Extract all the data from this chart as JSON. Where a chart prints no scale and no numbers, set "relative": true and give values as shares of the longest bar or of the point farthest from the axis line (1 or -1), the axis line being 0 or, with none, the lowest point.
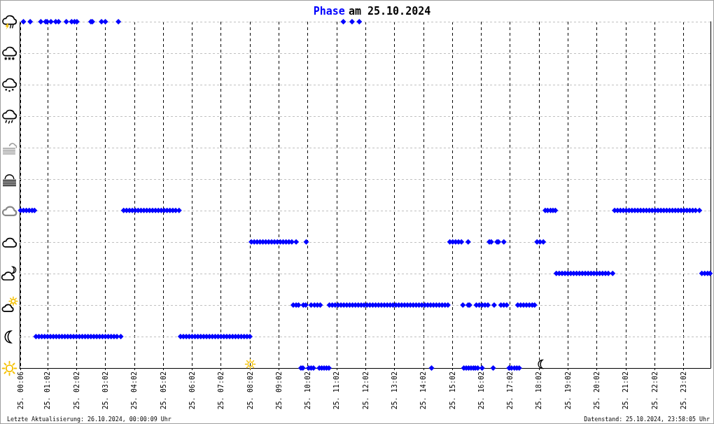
{
  "chart_data": {
    "type": "scatter",
    "title": "am 25.10.2024",
    "annotations": [
      "Letzte Aktualisierung: 26.10.2024, 00:00:09 Uhr",
      "Datenstand: 25.10.2024, 23:58:05 Uhr"
    ],
    "relative": true,
    "xlim": [
      "2024-10-25T00:04",
      "2024-10-25T23:58"
    ],
    "xticks": [
      {
        "value": "2024-10-25T00:06",
        "label": "25. 00:06"
      },
      {
        "value": "2024-10-25T01:02",
        "label": "25. 01:02"
      },
      {
        "value": "2024-10-25T02:02",
        "label": "25. 02:02"
      },
      {
        "value": "2024-10-25T03:02",
        "label": "25. 03:02"
      },
      {
        "value": "2024-10-25T04:02",
        "label": "25. 04:02"
      },
      {
        "value": "2024-10-25T05:02",
        "label": "25. 05:02"
      },
      {
        "value": "2024-10-25T06:02",
        "label": "25. 06:02"
      },
      {
        "value": "2024-10-25T07:02",
        "label": "25. 07:02"
      },
      {
        "value": "2024-10-25T08:02",
        "label": "25. 08:02"
      },
      {
        "value": "2024-10-25T09:02",
        "label": "25. 09:02"
      },
      {
        "value": "2024-10-25T10:02",
        "label": "25. 10:02"
      },
      {
        "value": "2024-10-25T11:02",
        "label": "25. 11:02"
      },
      {
        "value": "2024-10-25T12:02",
        "label": "25. 12:02"
      },
      {
        "value": "2024-10-25T13:02",
        "label": "25. 13:02"
      },
      {
        "value": "2024-10-25T14:02",
        "label": "25. 14:02"
      },
      {
        "value": "2024-10-25T15:02",
        "label": "25. 15:02"
      },
      {
        "value": "2024-10-25T16:02",
        "label": "25. 16:02"
      },
      {
        "value": "2024-10-25T17:02",
        "label": "25. 17:02"
      },
      {
        "value": "2024-10-25T18:02",
        "label": "25. 18:02"
      },
      {
        "value": "2024-10-25T19:02",
        "label": "25. 19:02"
      },
      {
        "value": "2024-10-25T20:02",
        "label": "25. 20:02"
      },
      {
        "value": "2024-10-25T21:02",
        "label": "25. 21:02"
      },
      {
        "value": "2024-10-25T22:02",
        "label": "25. 22:02"
      },
      {
        "value": "2024-10-25T23:02",
        "label": "25. 23:02"
      }
    ],
    "grid": "x",
    "marker": "diamond",
    "ref_lines": [
      {
        "axis": "y",
        "value": 0.091,
        "color": "#c0c0c0",
        "line_style": "dashed"
      },
      {
        "axis": "y",
        "value": 0.182,
        "color": "#c0c0c0",
        "line_style": "dashed"
      },
      {
        "axis": "y",
        "value": 0.273,
        "color": "#c0c0c0",
        "line_style": "dashed"
      },
      {
        "axis": "y",
        "value": 0.364,
        "color": "#c0c0c0",
        "line_style": "dashed"
      },
      {
        "axis": "y",
        "value": 0.455,
        "color": "#c0c0c0",
        "line_style": "dashed"
      },
      {
        "axis": "y",
        "value": 0.545,
        "color": "#c0c0c0",
        "line_style": "dashed"
      },
      {
        "axis": "y",
        "value": 0.636,
        "color": "#c0c0c0",
        "line_style": "dashed"
      },
      {
        "axis": "y",
        "value": 0.727,
        "color": "#c0c0c0",
        "line_style": "dashed"
      },
      {
        "axis": "y",
        "value": 0.818,
        "color": "#c0c0c0",
        "line_style": "dashed"
      },
      {
        "axis": "y",
        "value": 0.909,
        "color": "#c0c0c0",
        "line_style": "dashed"
      },
      {
        "axis": "y",
        "value": 1,
        "color": "#c0c0c0",
        "line_style": "dashed"
      }
    ],
    "series": [
      {
        "name": "Phase",
        "color": "#0000ff",
        "x": [
          "2024-10-25T00:12",
          "2024-10-25T00:26",
          "2024-10-25T00:48",
          "2024-10-25T00:58",
          "2024-10-25T01:01",
          "2024-10-25T01:09",
          "2024-10-25T01:19",
          "2024-10-25T01:25",
          "2024-10-25T01:41",
          "2024-10-25T01:52",
          "2024-10-25T01:58",
          "2024-10-25T02:03",
          "2024-10-25T02:32",
          "2024-10-25T02:35",
          "2024-10-25T02:54",
          "2024-10-25T03:02",
          "2024-10-25T03:29",
          "2024-10-25T11:16",
          "2024-10-25T11:34",
          "2024-10-25T11:49",
          "2024-10-25T00:06",
          "2024-10-25T00:12",
          "2024-10-25T00:18",
          "2024-10-25T00:24",
          "2024-10-25T00:30",
          "2024-10-25T00:35",
          "2024-10-25T03:40",
          "2024-10-25T03:46",
          "2024-10-25T03:52",
          "2024-10-25T03:58",
          "2024-10-25T04:04",
          "2024-10-25T04:10",
          "2024-10-25T04:16",
          "2024-10-25T04:22",
          "2024-10-25T04:28",
          "2024-10-25T04:34",
          "2024-10-25T04:40",
          "2024-10-25T04:46",
          "2024-10-25T04:52",
          "2024-10-25T04:58",
          "2024-10-25T05:04",
          "2024-10-25T05:10",
          "2024-10-25T05:16",
          "2024-10-25T05:22",
          "2024-10-25T05:28",
          "2024-10-25T05:35",
          "2024-10-25T18:15",
          "2024-10-25T18:20",
          "2024-10-25T18:26",
          "2024-10-25T18:31",
          "2024-10-25T18:36",
          "2024-10-25T20:39",
          "2024-10-25T20:45",
          "2024-10-25T20:51",
          "2024-10-25T20:57",
          "2024-10-25T21:03",
          "2024-10-25T21:09",
          "2024-10-25T21:15",
          "2024-10-25T21:21",
          "2024-10-25T21:27",
          "2024-10-25T21:33",
          "2024-10-25T21:39",
          "2024-10-25T21:45",
          "2024-10-25T21:51",
          "2024-10-25T21:57",
          "2024-10-25T22:03",
          "2024-10-25T22:09",
          "2024-10-25T22:15",
          "2024-10-25T22:21",
          "2024-10-25T22:27",
          "2024-10-25T22:33",
          "2024-10-25T22:39",
          "2024-10-25T22:45",
          "2024-10-25T22:51",
          "2024-10-25T22:57",
          "2024-10-25T23:03",
          "2024-10-25T23:09",
          "2024-10-25T23:15",
          "2024-10-25T23:21",
          "2024-10-25T23:27",
          "2024-10-25T23:35",
          "2024-10-25T08:05",
          "2024-10-25T08:11",
          "2024-10-25T08:17",
          "2024-10-25T08:23",
          "2024-10-25T08:29",
          "2024-10-25T08:35",
          "2024-10-25T08:41",
          "2024-10-25T08:47",
          "2024-10-25T08:53",
          "2024-10-25T08:59",
          "2024-10-25T09:05",
          "2024-10-25T09:11",
          "2024-10-25T09:17",
          "2024-10-25T09:23",
          "2024-10-25T09:29",
          "2024-10-25T09:38",
          "2024-10-25T09:59",
          "2024-10-25T14:57",
          "2024-10-25T15:03",
          "2024-10-25T15:09",
          "2024-10-25T15:15",
          "2024-10-25T15:21",
          "2024-10-25T15:35",
          "2024-10-25T16:19",
          "2024-10-25T16:23",
          "2024-10-25T16:35",
          "2024-10-25T16:38",
          "2024-10-25T16:49",
          "2024-10-25T17:58",
          "2024-10-25T18:04",
          "2024-10-25T18:11",
          "2024-10-25T18:38",
          "2024-10-25T18:44",
          "2024-10-25T18:50",
          "2024-10-25T18:56",
          "2024-10-25T19:02",
          "2024-10-25T19:08",
          "2024-10-25T19:14",
          "2024-10-25T19:20",
          "2024-10-25T19:26",
          "2024-10-25T19:32",
          "2024-10-25T19:38",
          "2024-10-25T19:44",
          "2024-10-25T19:50",
          "2024-10-25T19:56",
          "2024-10-25T20:02",
          "2024-10-25T20:08",
          "2024-10-25T20:14",
          "2024-10-25T20:20",
          "2024-10-25T20:26",
          "2024-10-25T20:35",
          "2024-10-25T23:40",
          "2024-10-25T23:46",
          "2024-10-25T23:52",
          "2024-10-25T23:57",
          "2024-10-25T09:32",
          "2024-10-25T09:38",
          "2024-10-25T09:43",
          "2024-10-25T09:53",
          "2024-10-25T09:58",
          "2024-10-25T10:09",
          "2024-10-25T10:16",
          "2024-10-25T10:22",
          "2024-10-25T10:28",
          "2024-10-25T10:47",
          "2024-10-25T10:53",
          "2024-10-25T10:59",
          "2024-10-25T11:05",
          "2024-10-25T11:11",
          "2024-10-25T11:17",
          "2024-10-25T11:23",
          "2024-10-25T11:29",
          "2024-10-25T11:35",
          "2024-10-25T11:41",
          "2024-10-25T11:47",
          "2024-10-25T11:53",
          "2024-10-25T11:59",
          "2024-10-25T12:05",
          "2024-10-25T12:11",
          "2024-10-25T12:17",
          "2024-10-25T12:23",
          "2024-10-25T12:29",
          "2024-10-25T12:35",
          "2024-10-25T12:41",
          "2024-10-25T12:47",
          "2024-10-25T12:53",
          "2024-10-25T12:59",
          "2024-10-25T13:05",
          "2024-10-25T13:11",
          "2024-10-25T13:17",
          "2024-10-25T13:23",
          "2024-10-25T13:29",
          "2024-10-25T13:35",
          "2024-10-25T13:41",
          "2024-10-25T13:47",
          "2024-10-25T13:53",
          "2024-10-25T13:59",
          "2024-10-25T14:05",
          "2024-10-25T14:11",
          "2024-10-25T14:17",
          "2024-10-25T14:23",
          "2024-10-25T14:29",
          "2024-10-25T14:35",
          "2024-10-25T14:41",
          "2024-10-25T14:47",
          "2024-10-25T14:53",
          "2024-10-25T15:24",
          "2024-10-25T15:35",
          "2024-10-25T15:38",
          "2024-10-25T15:52",
          "2024-10-25T15:58",
          "2024-10-25T16:04",
          "2024-10-25T16:10",
          "2024-10-25T16:16",
          "2024-10-25T16:29",
          "2024-10-25T16:43",
          "2024-10-25T16:49",
          "2024-10-25T16:55",
          "2024-10-25T17:18",
          "2024-10-25T17:24",
          "2024-10-25T17:30",
          "2024-10-25T17:36",
          "2024-10-25T17:42",
          "2024-10-25T17:48",
          "2024-10-25T17:53",
          "2024-10-25T00:38",
          "2024-10-25T00:44",
          "2024-10-25T00:50",
          "2024-10-25T00:56",
          "2024-10-25T01:02",
          "2024-10-25T01:08",
          "2024-10-25T01:14",
          "2024-10-25T01:20",
          "2024-10-25T01:26",
          "2024-10-25T01:32",
          "2024-10-25T01:38",
          "2024-10-25T01:44",
          "2024-10-25T01:50",
          "2024-10-25T01:56",
          "2024-10-25T02:02",
          "2024-10-25T02:08",
          "2024-10-25T02:14",
          "2024-10-25T02:20",
          "2024-10-25T02:26",
          "2024-10-25T02:32",
          "2024-10-25T02:38",
          "2024-10-25T02:44",
          "2024-10-25T02:50",
          "2024-10-25T02:56",
          "2024-10-25T03:02",
          "2024-10-25T03:08",
          "2024-10-25T03:14",
          "2024-10-25T03:20",
          "2024-10-25T03:26",
          "2024-10-25T03:34",
          "2024-10-25T05:38",
          "2024-10-25T05:44",
          "2024-10-25T05:50",
          "2024-10-25T05:56",
          "2024-10-25T06:02",
          "2024-10-25T06:08",
          "2024-10-25T06:14",
          "2024-10-25T06:20",
          "2024-10-25T06:26",
          "2024-10-25T06:32",
          "2024-10-25T06:38",
          "2024-10-25T06:44",
          "2024-10-25T06:50",
          "2024-10-25T06:56",
          "2024-10-25T07:02",
          "2024-10-25T07:08",
          "2024-10-25T07:14",
          "2024-10-25T07:20",
          "2024-10-25T07:26",
          "2024-10-25T07:32",
          "2024-10-25T07:38",
          "2024-10-25T07:44",
          "2024-10-25T07:50",
          "2024-10-25T07:56",
          "2024-10-25T08:02",
          "2024-10-25T09:48",
          "2024-10-25T09:52",
          "2024-10-25T10:04",
          "2024-10-25T10:09",
          "2024-10-25T10:14",
          "2024-10-25T10:26",
          "2024-10-25T10:31",
          "2024-10-25T10:36",
          "2024-10-25T10:41",
          "2024-10-25T10:46",
          "2024-10-25T14:19",
          "2024-10-25T15:26",
          "2024-10-25T15:31",
          "2024-10-25T15:36",
          "2024-10-25T15:41",
          "2024-10-25T15:46",
          "2024-10-25T15:50",
          "2024-10-25T15:55",
          "2024-10-25T16:04",
          "2024-10-25T16:27",
          "2024-10-25T17:00",
          "2024-10-25T17:05",
          "2024-10-25T17:11",
          "2024-10-25T17:16",
          "2024-10-25T17:21"
        ],
        "values": [
          1,
          1,
          1,
          1,
          1,
          1,
          1,
          1,
          1,
          1,
          1,
          1,
          1,
          1,
          1,
          1,
          1,
          1,
          1,
          1,
          0.455,
          0.455,
          0.455,
          0.455,
          0.455,
          0.455,
          0.455,
          0.455,
          0.455,
          0.455,
          0.455,
          0.455,
          0.455,
          0.455,
          0.455,
          0.455,
          0.455,
          0.455,
          0.455,
          0.455,
          0.455,
          0.455,
          0.455,
          0.455,
          0.455,
          0.455,
          0.455,
          0.455,
          0.455,
          0.455,
          0.455,
          0.455,
          0.455,
          0.455,
          0.455,
          0.455,
          0.455,
          0.455,
          0.455,
          0.455,
          0.455,
          0.455,
          0.455,
          0.455,
          0.455,
          0.455,
          0.455,
          0.455,
          0.455,
          0.455,
          0.455,
          0.455,
          0.455,
          0.455,
          0.455,
          0.455,
          0.455,
          0.455,
          0.455,
          0.455,
          0.455,
          0.364,
          0.364,
          0.364,
          0.364,
          0.364,
          0.364,
          0.364,
          0.364,
          0.364,
          0.364,
          0.364,
          0.364,
          0.364,
          0.364,
          0.364,
          0.364,
          0.364,
          0.364,
          0.364,
          0.364,
          0.364,
          0.364,
          0.364,
          0.364,
          0.364,
          0.364,
          0.364,
          0.364,
          0.364,
          0.364,
          0.364,
          0.273,
          0.273,
          0.273,
          0.273,
          0.273,
          0.273,
          0.273,
          0.273,
          0.273,
          0.273,
          0.273,
          0.273,
          0.273,
          0.273,
          0.273,
          0.273,
          0.273,
          0.273,
          0.273,
          0.273,
          0.273,
          0.273,
          0.273,
          0.273,
          0.182,
          0.182,
          0.182,
          0.182,
          0.182,
          0.182,
          0.182,
          0.182,
          0.182,
          0.182,
          0.182,
          0.182,
          0.182,
          0.182,
          0.182,
          0.182,
          0.182,
          0.182,
          0.182,
          0.182,
          0.182,
          0.182,
          0.182,
          0.182,
          0.182,
          0.182,
          0.182,
          0.182,
          0.182,
          0.182,
          0.182,
          0.182,
          0.182,
          0.182,
          0.182,
          0.182,
          0.182,
          0.182,
          0.182,
          0.182,
          0.182,
          0.182,
          0.182,
          0.182,
          0.182,
          0.182,
          0.182,
          0.182,
          0.182,
          0.182,
          0.182,
          0.182,
          0.182,
          0.182,
          0.182,
          0.182,
          0.182,
          0.182,
          0.182,
          0.182,
          0.182,
          0.182,
          0.182,
          0.182,
          0.182,
          0.182,
          0.182,
          0.182,
          0.182,
          0.182,
          0.091,
          0.091,
          0.091,
          0.091,
          0.091,
          0.091,
          0.091,
          0.091,
          0.091,
          0.091,
          0.091,
          0.091,
          0.091,
          0.091,
          0.091,
          0.091,
          0.091,
          0.091,
          0.091,
          0.091,
          0.091,
          0.091,
          0.091,
          0.091,
          0.091,
          0.091,
          0.091,
          0.091,
          0.091,
          0.091,
          0.091,
          0.091,
          0.091,
          0.091,
          0.091,
          0.091,
          0.091,
          0.091,
          0.091,
          0.091,
          0.091,
          0.091,
          0.091,
          0.091,
          0.091,
          0.091,
          0.091,
          0.091,
          0.091,
          0.091,
          0.091,
          0.091,
          0.091,
          0.091,
          0.091,
          0,
          0,
          0,
          0,
          0,
          0,
          0,
          0,
          0,
          0,
          0,
          0,
          0,
          0,
          0,
          0,
          0,
          0,
          0,
          0,
          0,
          0,
          0,
          0,
          0
        ]
      }
    ]
  }
}
